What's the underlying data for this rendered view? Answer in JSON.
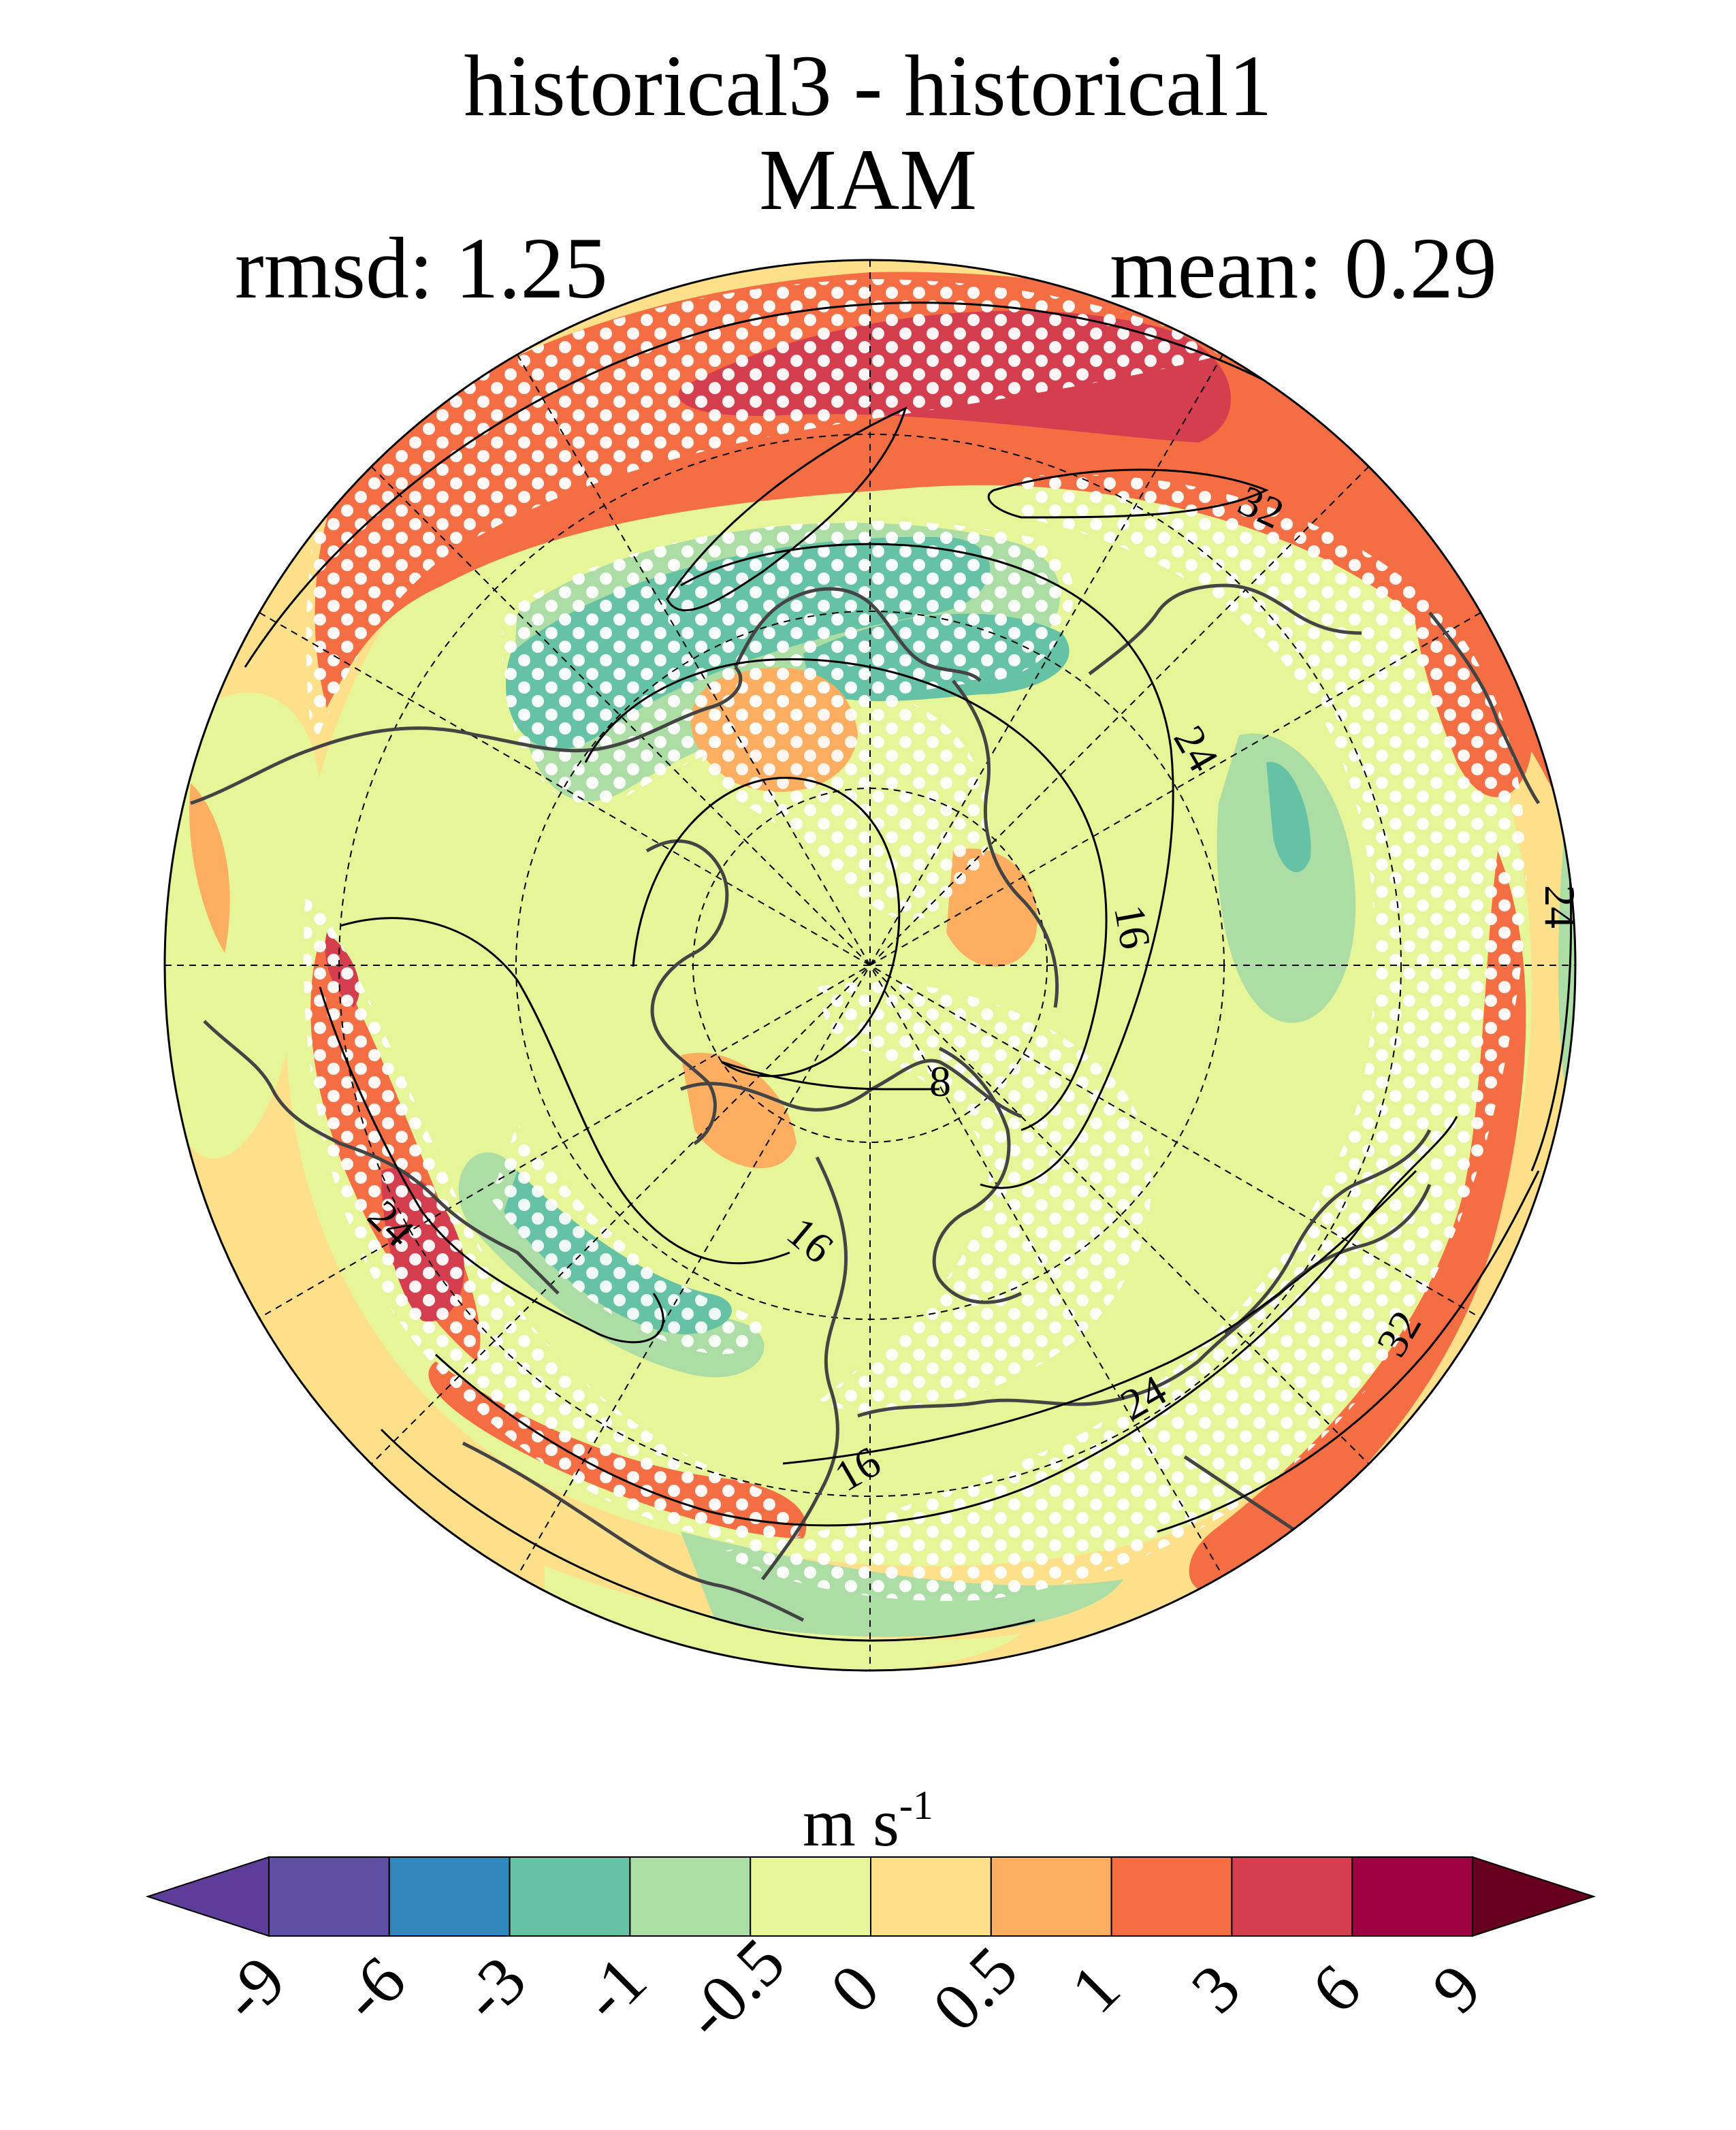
{
  "title": {
    "line1": "historical3 - historical1",
    "line2": "MAM"
  },
  "stats": {
    "rmsd_label": "rmsd: 1.25",
    "mean_label": "mean: 0.29"
  },
  "units": {
    "base": "m s",
    "exponent": "-1"
  },
  "contour_labels": [
    "32",
    "24",
    "16",
    "8",
    "16",
    "24",
    "16",
    "24",
    "32",
    "24"
  ],
  "colorbar": {
    "ticks": [
      "-9",
      "-6",
      "-3",
      "-1",
      "-0.5",
      "0",
      "0.5",
      "1",
      "3",
      "6",
      "9"
    ],
    "colors": [
      "#5e4fa2",
      "#3288bd",
      "#66c2a5",
      "#abdda4",
      "#e6f598",
      "#fee08b",
      "#fdae61",
      "#f46d43",
      "#d53e4f",
      "#9e0142"
    ],
    "under_color": "#5e3c99",
    "over_color": "#67001f"
  },
  "palette": {
    "background_field": "#fee08b",
    "stipple": "#ffffff",
    "coast": "#444444"
  }
}
